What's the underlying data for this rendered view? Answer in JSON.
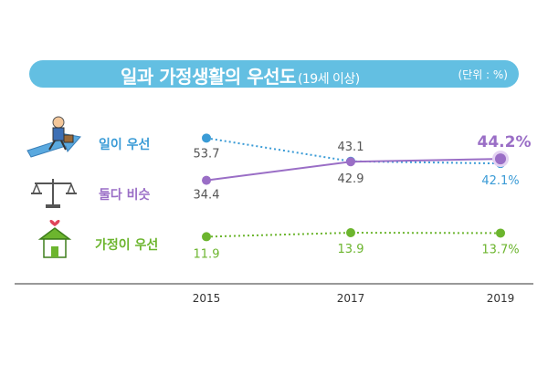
{
  "title": "일과 가정생활의 우선도",
  "title_sub": "(19세 이상)",
  "unit": "(단위 : %)",
  "colors": {
    "work": "#3a9bd6",
    "both": "#9a6ec6",
    "family": "#6cb52e",
    "title_band": "#63bfe2",
    "axis": "#333333"
  },
  "chart_data": {
    "type": "line",
    "title": "일과 가정생활의 우선도",
    "subtitle": "(19세 이상)",
    "unit": "(단위 : %)",
    "x": [
      "2015",
      "2017",
      "2019"
    ],
    "ylim": [
      0,
      50
    ],
    "grid": false,
    "legend": "left",
    "series": [
      {
        "name": "일이 우선",
        "key": "work",
        "values": [
          53.7,
          43.1,
          42.1
        ],
        "labels": [
          "53.7",
          "43.1",
          "42.1%"
        ],
        "style": "dotted",
        "icon": "worker-running-icon"
      },
      {
        "name": "둘다 비슷",
        "key": "both",
        "values": [
          34.4,
          42.9,
          44.2
        ],
        "labels": [
          "34.4",
          "42.9",
          "44.2%"
        ],
        "style": "solid",
        "icon": "balance-scale-icon"
      },
      {
        "name": "가정이 우선",
        "key": "family",
        "values": [
          11.9,
          13.9,
          13.7
        ],
        "labels": [
          "11.9",
          "13.9",
          "13.7%"
        ],
        "style": "dotted",
        "icon": "house-heart-icon"
      }
    ]
  }
}
